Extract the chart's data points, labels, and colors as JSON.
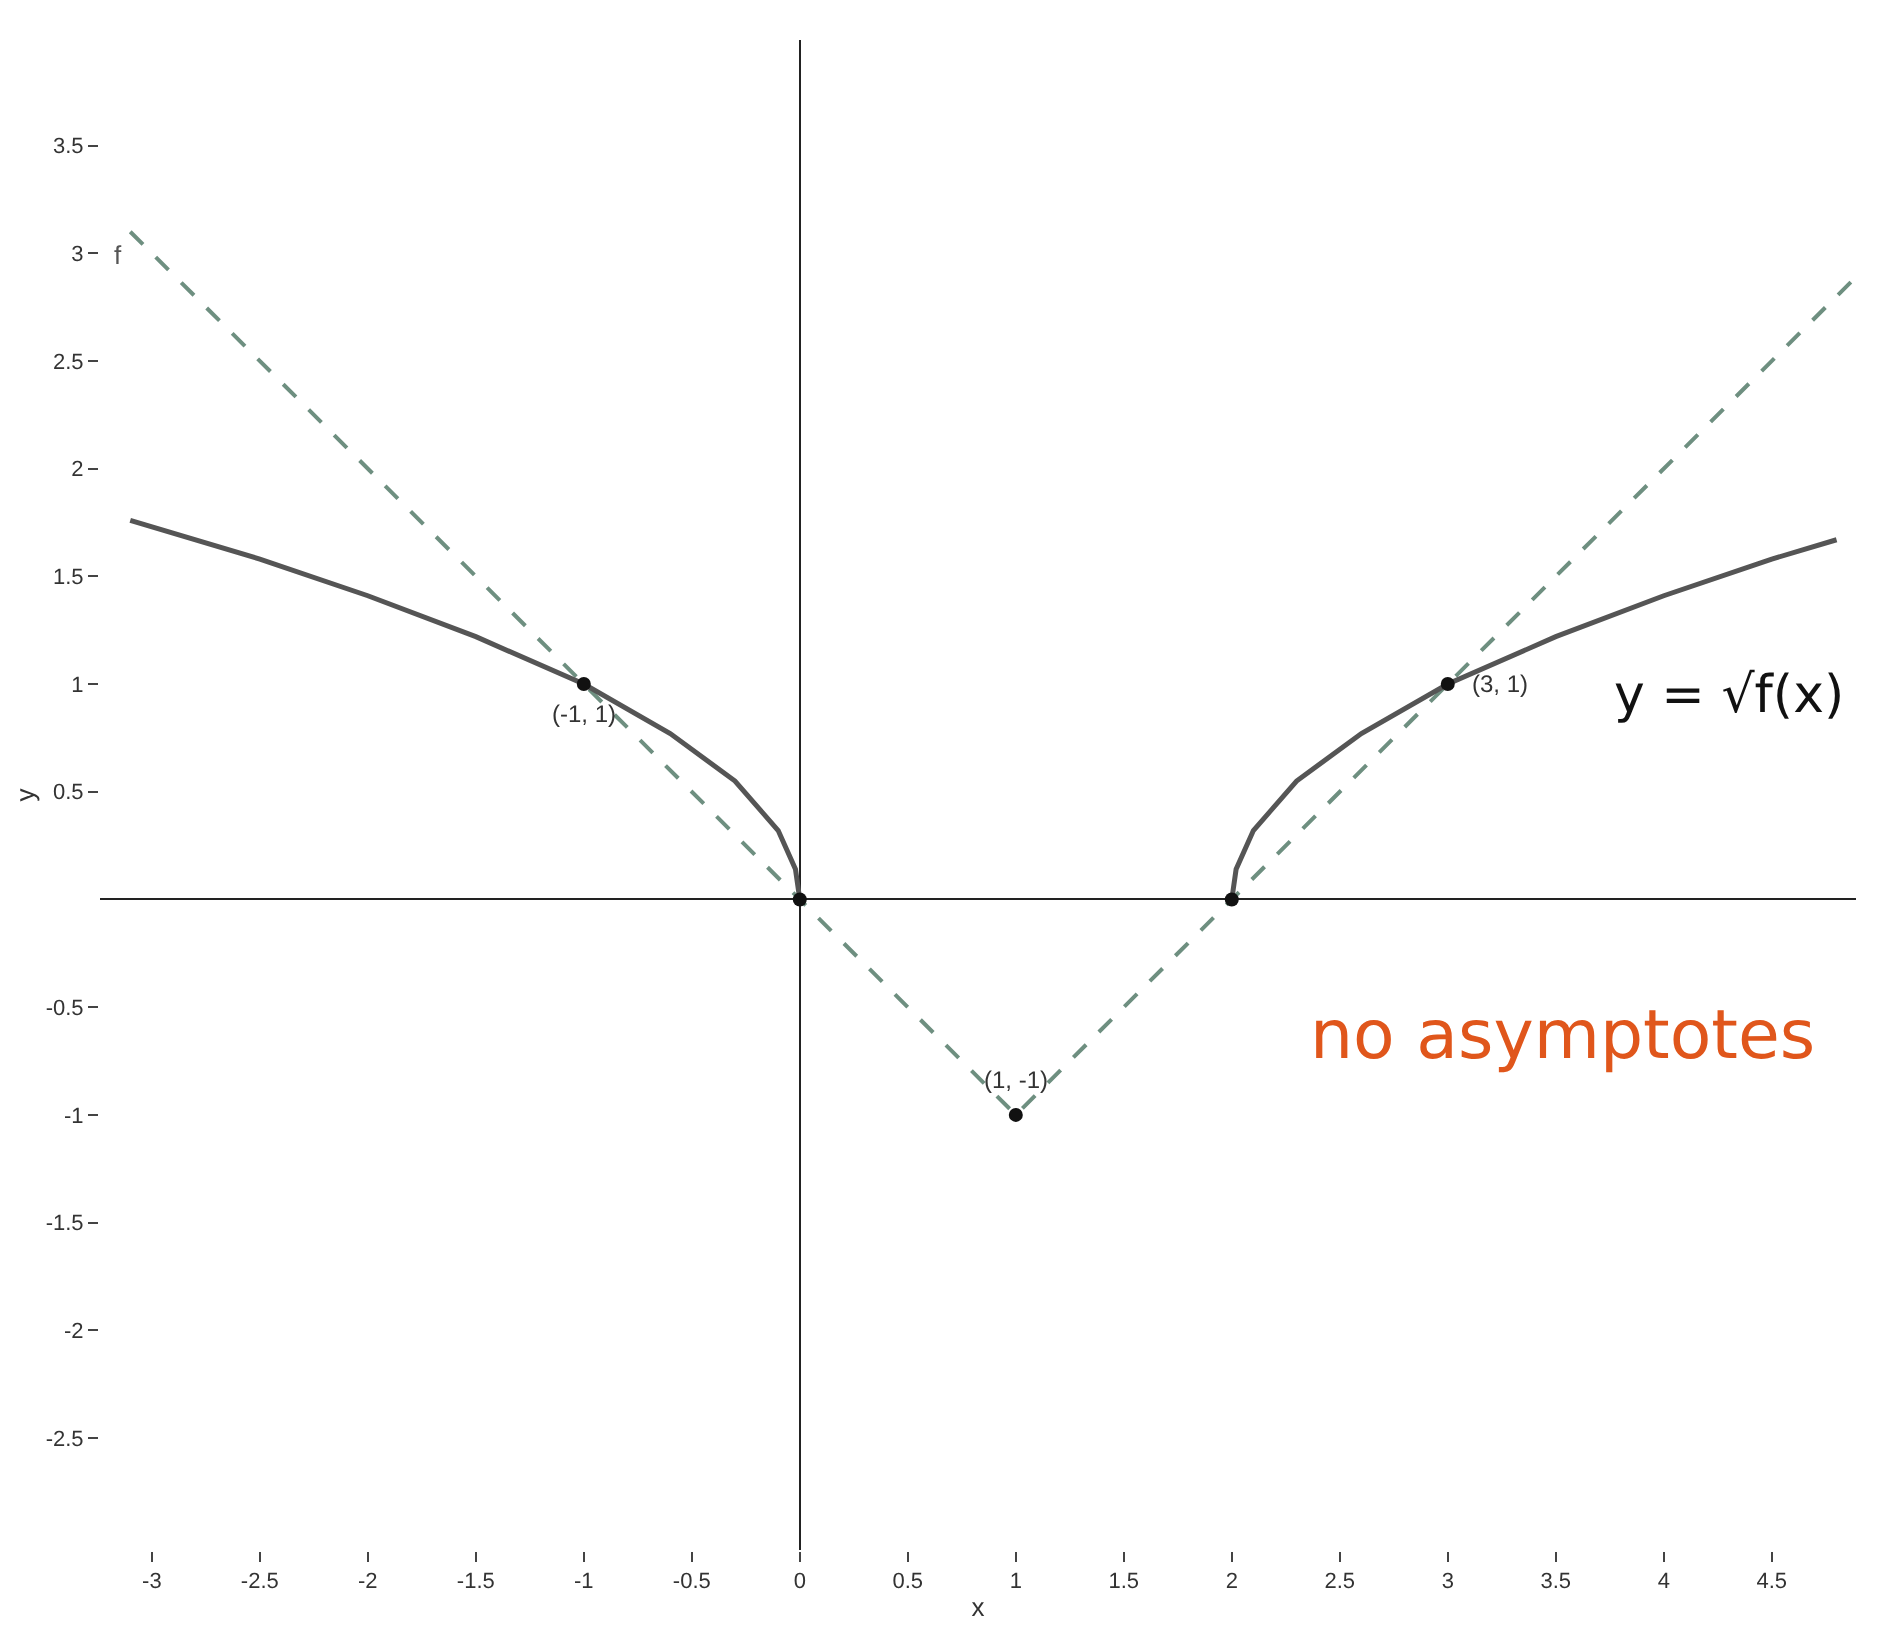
{
  "chart_data": {
    "type": "line",
    "xlabel": "x",
    "ylabel": "y",
    "xlim": [
      -3.24,
      4.89
    ],
    "ylim": [
      -3.02,
      3.99
    ],
    "xticks": [
      -3,
      -2.5,
      -2,
      -1.5,
      -1,
      -0.5,
      0,
      0.5,
      1,
      1.5,
      2,
      2.5,
      3,
      3.5,
      4,
      4.5
    ],
    "yticks": [
      -2.5,
      -2,
      -1.5,
      -1,
      -0.5,
      0.5,
      1,
      1.5,
      2,
      2.5,
      3,
      3.5
    ],
    "series": [
      {
        "line_style": "dashed",
        "color": "#6e8f80",
        "x": [
          -3.1,
          1,
          4.89
        ],
        "values": [
          3.1,
          -1,
          2.89
        ]
      },
      {
        "line_style": "solid",
        "color": "#555555",
        "x": [
          -3.1,
          -2.5,
          -2,
          -1.5,
          -1,
          -0.6,
          -0.3,
          -0.1,
          -0.02,
          0
        ],
        "values": [
          1.76,
          1.58,
          1.41,
          1.22,
          1,
          0.77,
          0.55,
          0.32,
          0.14,
          0
        ]
      },
      {
        "line_style": "solid",
        "color": "#555555",
        "x": [
          2,
          2.02,
          2.1,
          2.3,
          2.6,
          3,
          3.5,
          4,
          4.5,
          4.8
        ],
        "values": [
          0,
          0.14,
          0.32,
          0.55,
          0.77,
          1,
          1.22,
          1.41,
          1.58,
          1.67
        ]
      },
      {
        "type": "scatter",
        "marker": "circle",
        "color": "#111111",
        "x": [
          -1,
          3,
          1,
          0,
          2
        ],
        "values": [
          1,
          1,
          -1,
          0,
          0
        ]
      }
    ],
    "annotations": [
      {
        "text": "(-1, 1)",
        "x": -1,
        "y": 1
      },
      {
        "text": "(3, 1)",
        "x": 3,
        "y": 1
      },
      {
        "text": "(1, -1)",
        "x": 1,
        "y": -1
      },
      {
        "text": "f",
        "x": -3.1,
        "y": 3.1
      },
      "y = √f(x)",
      "no asymptotes"
    ]
  }
}
